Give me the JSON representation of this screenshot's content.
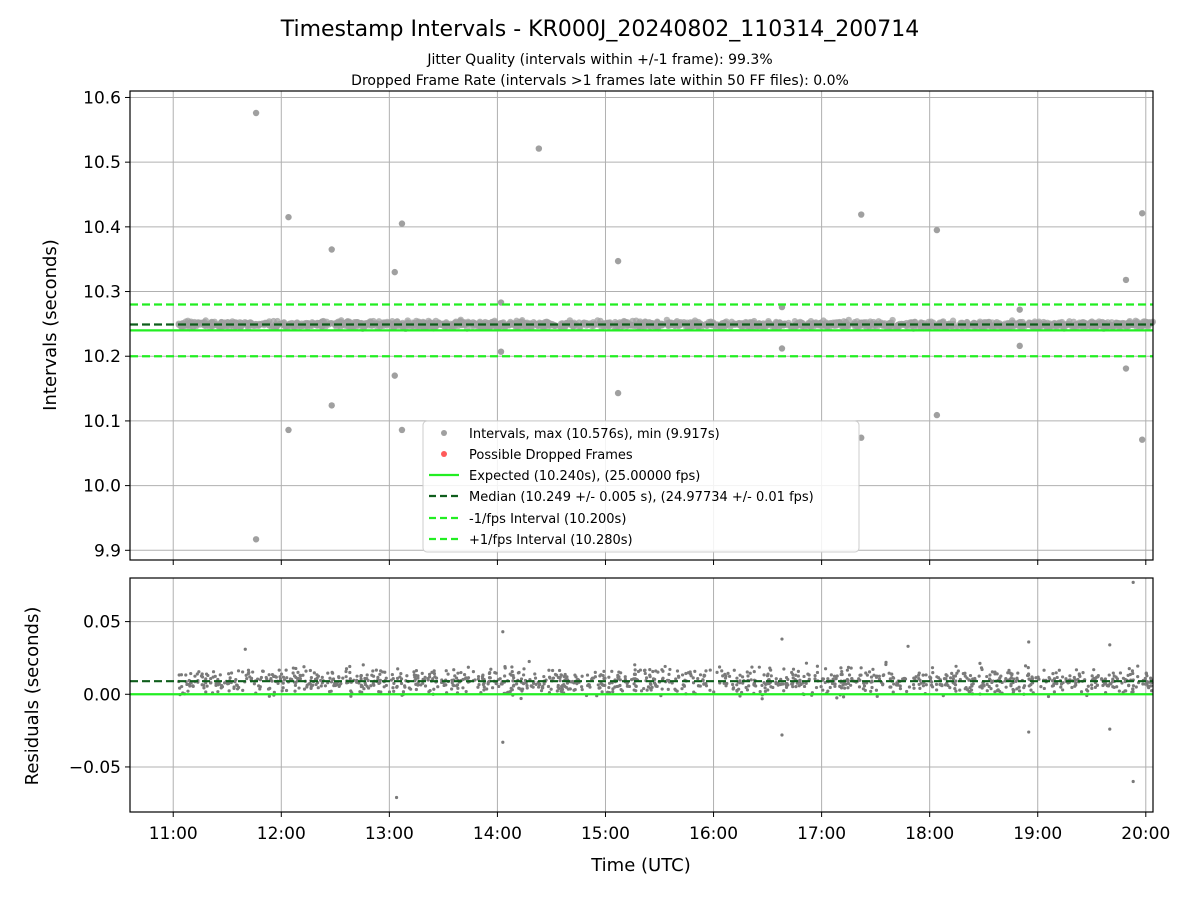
{
  "figure": {
    "title": "Timestamp Intervals - KR000J_20240802_110314_200714",
    "subtitle_1": "Jitter Quality (intervals within +/-1 frame): 99.3%",
    "subtitle_2": "Dropped Frame Rate (intervals >1 frames late within 50 FF files): 0.0%"
  },
  "chart_data": [
    {
      "type": "scatter",
      "panel": "intervals",
      "ylabel": "Intervals (seconds)",
      "xlabel": "",
      "xlim": [
        "10:36",
        "20:04"
      ],
      "ylim": [
        9.885,
        10.61
      ],
      "xticks": [
        "11:00",
        "12:00",
        "13:00",
        "14:00",
        "15:00",
        "16:00",
        "17:00",
        "18:00",
        "19:00",
        "20:00"
      ],
      "yticks": [
        "9.9",
        "10.0",
        "10.1",
        "10.2",
        "10.3",
        "10.4",
        "10.5",
        "10.6"
      ],
      "grid": true,
      "legend_position": "lower-center",
      "series": [
        {
          "name": "Intervals, max (10.576s), min (9.917s)",
          "kind": "points",
          "color": "#a0a0a0",
          "band": {
            "center": 10.249,
            "spread": 0.005
          },
          "outliers": [
            [
              "11:46",
              10.576
            ],
            [
              "11:46",
              9.917
            ],
            [
              "12:04",
              10.415
            ],
            [
              "12:04",
              10.086
            ],
            [
              "12:28",
              10.365
            ],
            [
              "12:28",
              10.124
            ],
            [
              "13:03",
              10.33
            ],
            [
              "13:03",
              10.17
            ],
            [
              "13:07",
              10.405
            ],
            [
              "13:07",
              10.086
            ],
            [
              "14:23",
              10.521
            ],
            [
              "15:07",
              10.347
            ],
            [
              "15:07",
              10.143
            ],
            [
              "17:22",
              10.419
            ],
            [
              "17:22",
              10.074
            ],
            [
              "18:04",
              10.395
            ],
            [
              "18:04",
              10.109
            ],
            [
              "19:49",
              10.318
            ],
            [
              "19:49",
              10.181
            ],
            [
              "19:58",
              10.421
            ],
            [
              "19:58",
              10.071
            ],
            [
              "14:02",
              10.283
            ],
            [
              "14:02",
              10.207
            ],
            [
              "16:38",
              10.276
            ],
            [
              "16:38",
              10.212
            ],
            [
              "18:50",
              10.272
            ],
            [
              "18:50",
              10.216
            ]
          ]
        },
        {
          "name": "Possible Dropped Frames",
          "kind": "points",
          "color": "#ff5a5a",
          "values": []
        },
        {
          "name": "Expected (10.240s), (25.00000 fps)",
          "kind": "hline",
          "y": 10.24,
          "color": "#22ee22",
          "style": "solid"
        },
        {
          "name": "Median (10.249 +/- 0.005 s), (24.97734 +/- 0.01 fps)",
          "kind": "hline",
          "y": 10.249,
          "color": "#0f5e1c",
          "style": "dashed"
        },
        {
          "name": "-1/fps Interval (10.200s)",
          "kind": "hline",
          "y": 10.2,
          "color": "#22ee22",
          "style": "dashed"
        },
        {
          "name": "+1/fps Interval (10.280s)",
          "kind": "hline",
          "y": 10.28,
          "color": "#22ee22",
          "style": "dashed"
        }
      ]
    },
    {
      "type": "scatter",
      "panel": "residuals",
      "xlabel": "Time (UTC)",
      "ylabel": "Residuals (seconds)",
      "xlim": [
        "10:36",
        "20:04"
      ],
      "ylim": [
        -0.081,
        0.08
      ],
      "xticks": [
        "11:00",
        "12:00",
        "13:00",
        "14:00",
        "15:00",
        "16:00",
        "17:00",
        "18:00",
        "19:00",
        "20:00"
      ],
      "yticks": [
        "−0.05",
        "0.00",
        "0.05"
      ],
      "grid": true,
      "series": [
        {
          "kind": "points",
          "color": "#7a7a7a",
          "band": {
            "center": 0.009,
            "spread": 0.009
          },
          "outliers": [
            [
              "19:53",
              0.077
            ],
            [
              "13:04",
              -0.071
            ],
            [
              "19:53",
              -0.06
            ],
            [
              "14:03",
              0.043
            ],
            [
              "14:03",
              -0.033
            ],
            [
              "16:38",
              0.038
            ],
            [
              "16:38",
              -0.028
            ],
            [
              "18:55",
              0.036
            ],
            [
              "18:55",
              -0.026
            ],
            [
              "11:40",
              0.031
            ],
            [
              "17:48",
              0.033
            ],
            [
              "19:40",
              0.034
            ],
            [
              "19:40",
              -0.024
            ]
          ]
        },
        {
          "kind": "hline",
          "y": 0.0,
          "color": "#22ee22",
          "style": "solid"
        },
        {
          "kind": "hline",
          "y": 0.009,
          "color": "#0f5e1c",
          "style": "dashed"
        }
      ]
    }
  ]
}
